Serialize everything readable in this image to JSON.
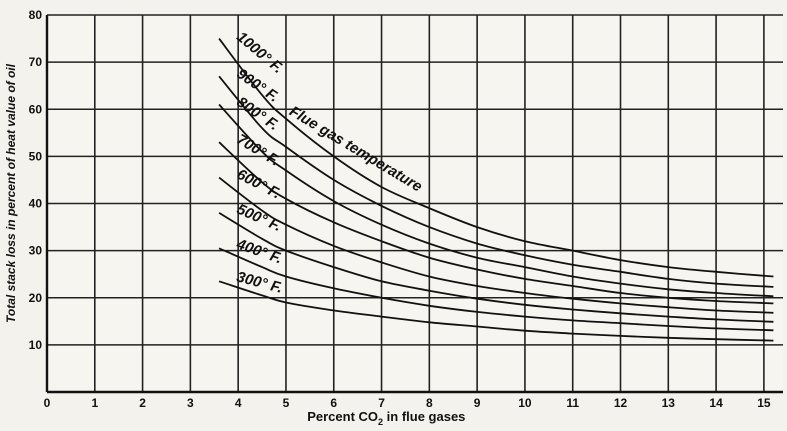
{
  "chart_data": {
    "type": "line",
    "xlabel_prefix": "Percent CO",
    "xlabel_sub": "2",
    "xlabel_suffix": " in flue gases",
    "ylabel": "Total stack loss in percent of heat value of oil",
    "annotation": "Flue gas temperature",
    "xlim": [
      0,
      15.4
    ],
    "ylim": [
      0,
      80
    ],
    "x_ticks": [
      "0",
      "1",
      "2",
      "3",
      "4",
      "5",
      "6",
      "7",
      "8",
      "9",
      "10",
      "11",
      "12",
      "13",
      "14",
      "15"
    ],
    "y_ticks": [
      "10",
      "20",
      "30",
      "40",
      "50",
      "60",
      "70",
      "80"
    ],
    "grid": true,
    "series": [
      {
        "name": "1000° F.",
        "x": [
          3.6,
          4.5,
          5,
          6,
          7,
          8,
          9,
          10,
          11,
          12,
          13,
          14,
          15.2
        ],
        "y": [
          75,
          63,
          58,
          50,
          43.5,
          39,
          35,
          32,
          30,
          28,
          26.5,
          25.5,
          24.5
        ]
      },
      {
        "name": "900° F.",
        "x": [
          3.6,
          4.5,
          5,
          6,
          7,
          8,
          9,
          10,
          11,
          12,
          13,
          14,
          15.2
        ],
        "y": [
          67,
          56,
          52,
          45,
          39.5,
          35,
          31.5,
          29,
          27,
          25.5,
          24,
          23,
          22.3
        ]
      },
      {
        "name": "800° F.",
        "x": [
          3.6,
          4.5,
          5,
          6,
          7,
          8,
          9,
          10,
          11,
          12,
          13,
          14,
          15.2
        ],
        "y": [
          61,
          51,
          47,
          40.5,
          35.5,
          31.5,
          28.5,
          26.5,
          24.5,
          23,
          21.8,
          21,
          20.3
        ]
      },
      {
        "name": "700° F.",
        "x": [
          3.6,
          4.5,
          5,
          6,
          7,
          8,
          9,
          10,
          11,
          12,
          13,
          14,
          15.2
        ],
        "y": [
          53,
          44.5,
          41,
          36,
          32,
          28.5,
          26,
          24,
          22.5,
          21,
          20,
          19.3,
          18.8
        ]
      },
      {
        "name": "600° F.",
        "x": [
          3.6,
          4.5,
          5,
          6,
          7,
          8,
          9,
          10,
          11,
          12,
          13,
          14,
          15.2
        ],
        "y": [
          45.5,
          38.5,
          35.5,
          31,
          27.5,
          24.5,
          22.5,
          21,
          19.8,
          18.8,
          18,
          17.3,
          16.8
        ]
      },
      {
        "name": "500° F.",
        "x": [
          3.6,
          4.5,
          5,
          6,
          7,
          8,
          9,
          10,
          11,
          12,
          13,
          14,
          15.2
        ],
        "y": [
          38,
          32.5,
          30,
          26.5,
          23.5,
          21.5,
          19.8,
          18.5,
          17.5,
          16.7,
          16,
          15.4,
          14.9
        ]
      },
      {
        "name": "400° F.",
        "x": [
          3.6,
          4.5,
          5,
          6,
          7,
          8,
          9,
          10,
          11,
          12,
          13,
          14,
          15.2
        ],
        "y": [
          30.5,
          26.5,
          24.5,
          22,
          20,
          18.3,
          17,
          16,
          15.2,
          14.6,
          14,
          13.5,
          13.1
        ]
      },
      {
        "name": "300° F.",
        "x": [
          3.6,
          4.5,
          5,
          6,
          7,
          8,
          9,
          10,
          11,
          12,
          13,
          14,
          15.2
        ],
        "y": [
          23.5,
          20.5,
          19,
          17.3,
          16,
          14.8,
          13.9,
          13,
          12.4,
          11.9,
          11.5,
          11.2,
          10.9
        ]
      }
    ]
  }
}
